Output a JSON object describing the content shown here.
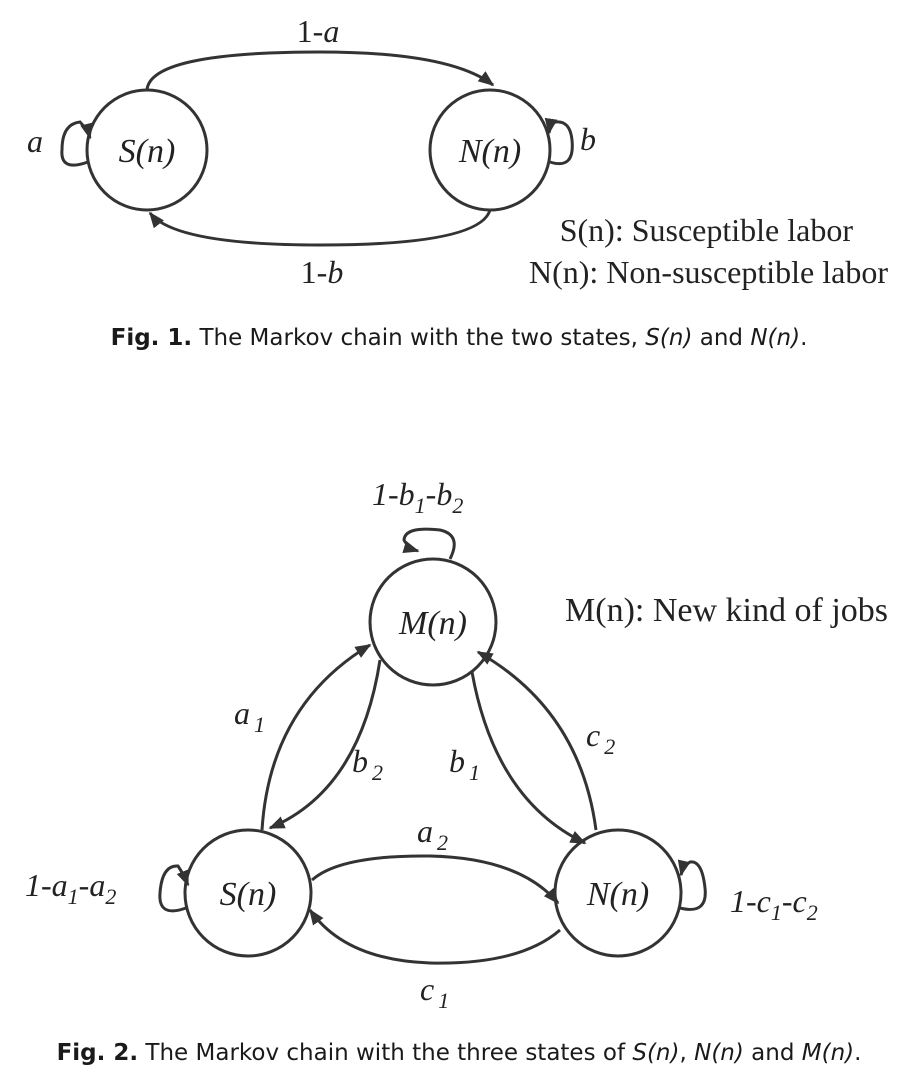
{
  "fig1": {
    "states": {
      "s": "S(n)",
      "n": "N(n)"
    },
    "edges": {
      "s_to_n": "1-a",
      "n_to_s": "1-b",
      "self_s": "a",
      "self_n": "b"
    },
    "legend": [
      "S(n): Susceptible labor",
      "N(n): Non-susceptible labor"
    ],
    "caption": {
      "label": "Fig. 1.",
      "text_before": "The Markov chain with the two states,",
      "s": "S(n)",
      "and": "and",
      "n": "N(n)",
      "end": "."
    }
  },
  "fig2": {
    "states": {
      "m": "M(n)",
      "s": "S(n)",
      "n": "N(n)"
    },
    "legend": "M(n): New kind of jobs",
    "edges": {
      "self_m": {
        "base": "1-b",
        "sub1": "1",
        "mid": "-b",
        "sub2": "2"
      },
      "self_s": {
        "base": "1-a",
        "sub1": "1",
        "mid": "-a",
        "sub2": "2"
      },
      "self_n": {
        "base": "1-c",
        "sub1": "1",
        "mid": "-c",
        "sub2": "2"
      },
      "a1": {
        "base": "a",
        "sub": "1"
      },
      "b2": {
        "base": "b",
        "sub": "2"
      },
      "b1": {
        "base": "b",
        "sub": "1"
      },
      "c2": {
        "base": "c",
        "sub": "2"
      },
      "a2": {
        "base": "a",
        "sub": "2"
      },
      "c1": {
        "base": "c",
        "sub": "1"
      }
    },
    "caption": {
      "label": "Fig. 2.",
      "text_before": "The Markov chain with the three states of",
      "s": "S(n)",
      "sep": ",",
      "n": "N(n)",
      "and": "and",
      "m": "M(n)",
      "end": "."
    }
  }
}
